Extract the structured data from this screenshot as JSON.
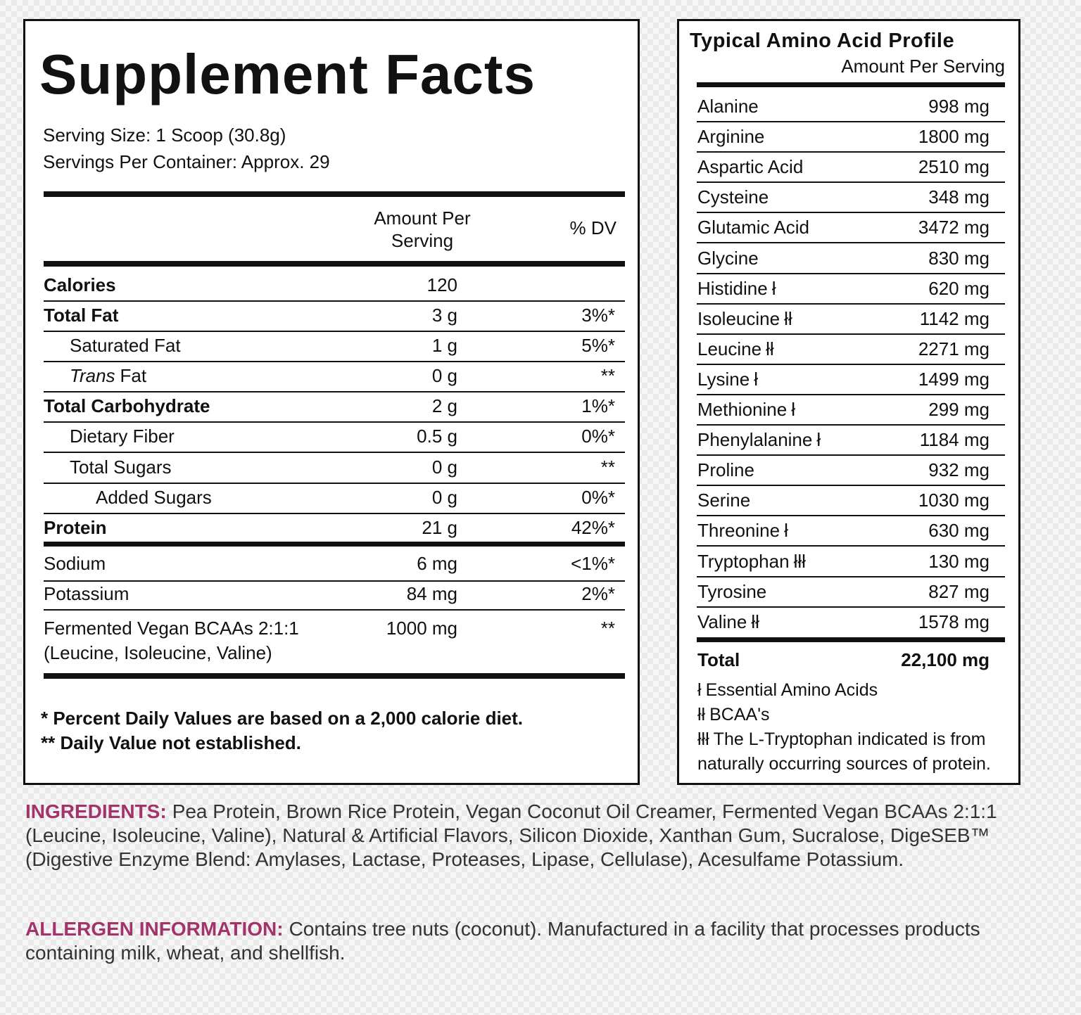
{
  "supplement_facts": {
    "title": "Supplement Facts",
    "serving_size": "Serving Size: 1 Scoop (30.8g)",
    "servings_per_container": "Servings Per Container: Approx. 29",
    "header": {
      "amount": "Amount Per Serving",
      "dv": "% DV"
    },
    "rows": [
      {
        "name": "Calories",
        "amount": "120"
      },
      {
        "name": "Total Fat",
        "amount": "3 g",
        "dv": "3%*"
      },
      {
        "name": "Saturated Fat",
        "amount": "1 g",
        "dv": "5%*"
      },
      {
        "name_italic": "Trans",
        "name": "Fat",
        "amount": "0 g",
        "dv": "**"
      },
      {
        "name": "Total Carbohydrate",
        "amount": "2 g",
        "dv": "1%*"
      },
      {
        "name": "Dietary Fiber",
        "amount": "0.5 g",
        "dv": "0%*"
      },
      {
        "name": "Total Sugars",
        "amount": "0 g",
        "dv": "**"
      },
      {
        "name": "Added Sugars",
        "amount": "0 g",
        "dv": "0%*"
      },
      {
        "name": "Protein",
        "amount": "21 g",
        "dv": "42%*"
      },
      {
        "name": "Sodium",
        "amount": "6 mg",
        "dv": "<1%*"
      },
      {
        "name": "Potassium",
        "amount": "84 mg",
        "dv": "2%*"
      },
      {
        "name": "Fermented Vegan BCAAs 2:1:1",
        "name_note": "(Leucine, Isoleucine, Valine)",
        "amount": "1000 mg",
        "dv": "**"
      }
    ],
    "footnotes": [
      "* Percent Daily Values are based on a 2,000 calorie diet.",
      "** Daily Value not established."
    ]
  },
  "amino_profile": {
    "title": "Typical Amino Acid Profile",
    "subtitle": "Amount Per Serving",
    "rows": [
      {
        "name": "Alanine",
        "amount": "998 mg"
      },
      {
        "name": "Arginine",
        "amount": "1800 mg"
      },
      {
        "name": "Aspartic Acid",
        "amount": "2510 mg"
      },
      {
        "name": "Cysteine",
        "amount": "348 mg"
      },
      {
        "name": "Glutamic Acid",
        "amount": "3472 mg"
      },
      {
        "name": "Glycine",
        "amount": "830 mg"
      },
      {
        "name": "Histidine",
        "marker": "ł",
        "amount": "620 mg"
      },
      {
        "name": "Isoleucine",
        "marker": "łł",
        "amount": "1142 mg"
      },
      {
        "name": "Leucine",
        "marker": "łł",
        "amount": "2271 mg"
      },
      {
        "name": "Lysine",
        "marker": "ł",
        "amount": "1499 mg"
      },
      {
        "name": "Methionine",
        "marker": "ł",
        "amount": "299 mg"
      },
      {
        "name": "Phenylalanine",
        "marker": "ł",
        "amount": "1184 mg"
      },
      {
        "name": "Proline",
        "amount": "932 mg"
      },
      {
        "name": "Serine",
        "amount": "1030 mg"
      },
      {
        "name": "Threonine",
        "marker": "ł",
        "amount": "630 mg"
      },
      {
        "name": "Tryptophan",
        "marker": "łłł",
        "amount": "130 mg"
      },
      {
        "name": "Tyrosine",
        "amount": "827 mg"
      },
      {
        "name": "Valine",
        "marker": "łł",
        "amount": "1578 mg"
      }
    ],
    "total": {
      "name": "Total",
      "amount": "22,100 mg"
    },
    "legend": [
      {
        "marker": "ł",
        "text": "Essential Amino Acids"
      },
      {
        "marker": "łł",
        "text": "BCAA's"
      },
      {
        "marker": "łłł",
        "text": "The L-Tryptophan indicated is from naturally occurring sources of protein."
      }
    ]
  },
  "ingredients": {
    "label": "INGREDIENTS:",
    "text": "Pea Protein, Brown Rice Protein, Vegan Coconut Oil Creamer, Fermented Vegan BCAAs 2:1:1 (Leucine, Isoleucine, Valine), Natural & Artificial Flavors, Silicon Dioxide, Xanthan Gum, Sucralose, DigeSEB™ (Digestive Enzyme Blend: Amylases, Lactase, Proteases, Lipase, Cellulase), Acesulfame Potassium."
  },
  "allergen": {
    "label": "ALLERGEN INFORMATION:",
    "text": "Contains tree nuts (coconut). Manufactured in a facility that processes products containing milk, wheat, and shellfish."
  }
}
